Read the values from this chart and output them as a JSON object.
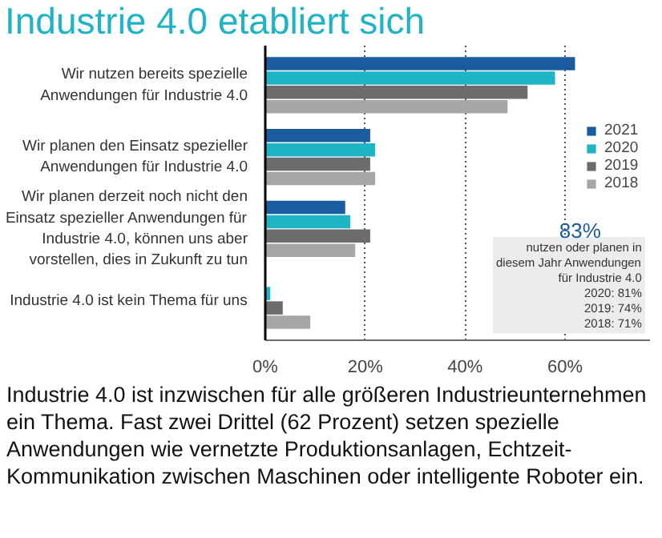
{
  "chart_data": {
    "type": "bar",
    "orientation": "horizontal",
    "title": "Industrie 4.0 etabliert sich",
    "categories": [
      "Wir nutzen bereits spezielle Anwendungen für Industrie 4.0",
      "Wir planen den Einsatz spezieller Anwendungen für Industrie 4.0",
      "Wir planen derzeit noch nicht den Einsatz spezieller Anwendungen für Industrie 4.0, können uns aber vorstellen, dies in Zukunft zu tun",
      "Industrie 4.0 ist kein Thema für uns"
    ],
    "series": [
      {
        "name": "2021",
        "color": "#1b5c9e",
        "values": [
          62,
          21,
          16,
          0
        ]
      },
      {
        "name": "2020",
        "color": "#1fb3c6",
        "values": [
          58,
          22,
          17,
          1
        ]
      },
      {
        "name": "2019",
        "color": "#6b6c6e",
        "values": [
          52.5,
          21,
          21,
          3.5
        ]
      },
      {
        "name": "2018",
        "color": "#a5a6a8",
        "values": [
          48.5,
          22,
          18,
          9
        ]
      }
    ],
    "xlim": [
      0,
      77
    ],
    "xticks": [
      {
        "value": 0,
        "label": "0%"
      },
      {
        "value": 20,
        "label": "20%"
      },
      {
        "value": 40,
        "label": "40%"
      },
      {
        "value": 60,
        "label": "60%"
      }
    ],
    "grid": "x",
    "legend": "right",
    "annotations": [
      "83%",
      "nutzen oder planen in\ndiesem Jahr Anwendungen\nfür Industrie 4.0\n2020: 81%\n2019: 74%\n2018: 71%",
      "Industrie 4.0 ist inzwischen für alle größeren Industrieunternehmen ein Thema. Fast zwei Drittel (62 Prozent) setzen spezielle Anwendungen wie vernetzte Produktionsanlagen, Echtzeit-Kommunikation zwischen Maschinen oder intelligente Roboter ein."
    ]
  }
}
